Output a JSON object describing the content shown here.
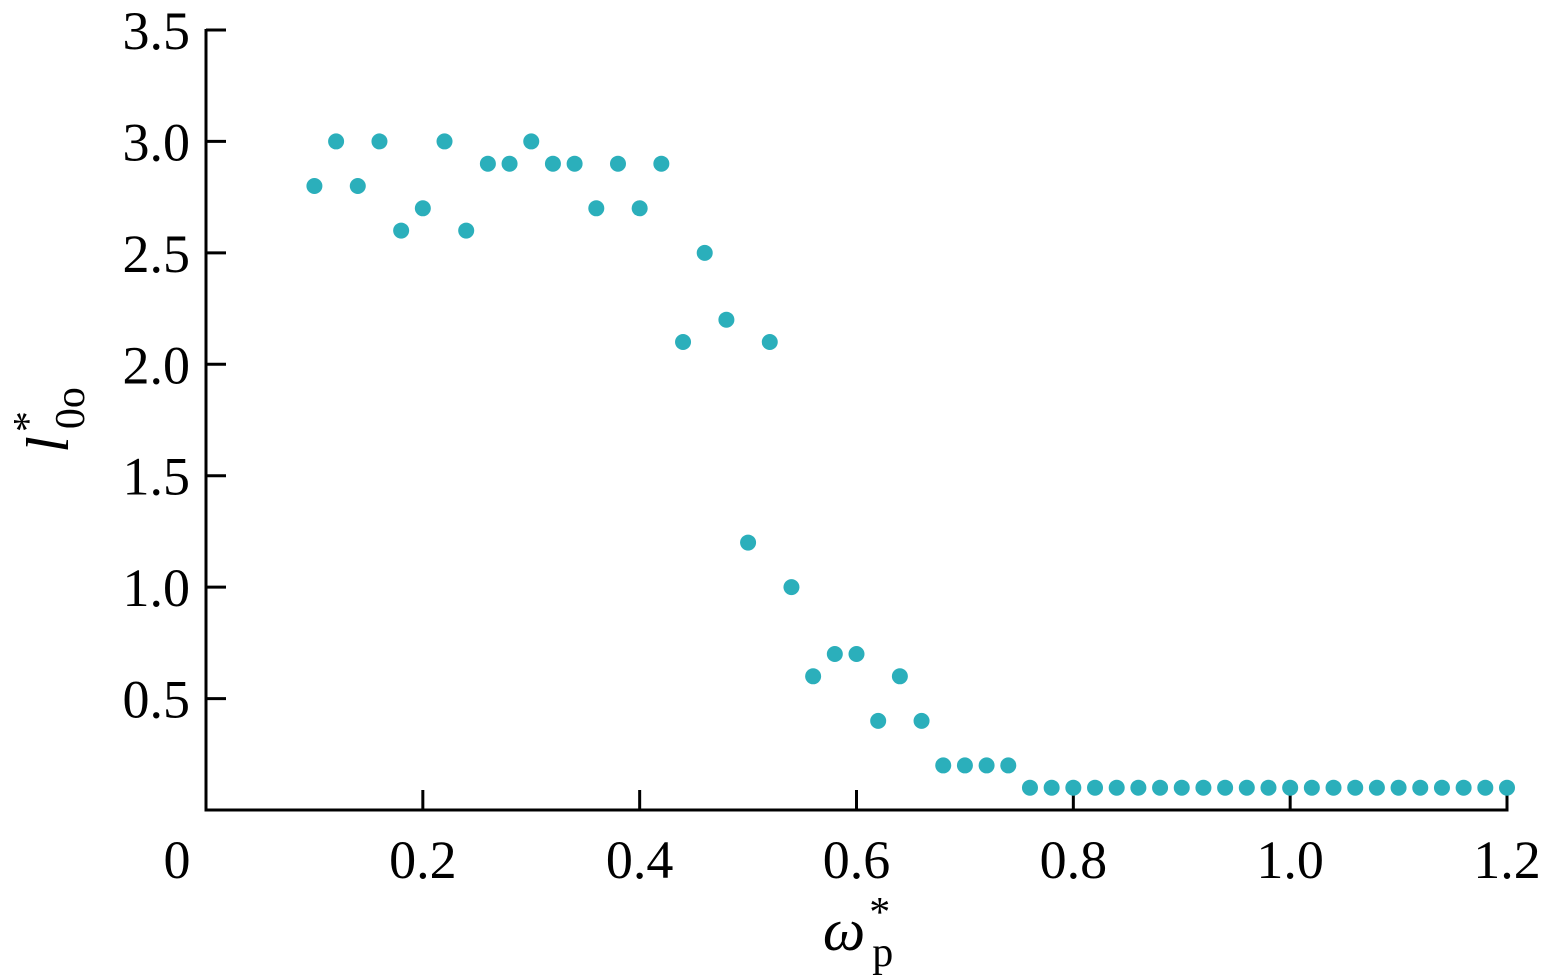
{
  "chart_data": {
    "type": "scatter",
    "xlabel": {
      "symbol": "ω",
      "superscript": "*",
      "subscript": "p"
    },
    "ylabel": {
      "symbol": "l",
      "superscript": "*",
      "subscript": "0o"
    },
    "xlim": [
      0,
      1.2
    ],
    "ylim": [
      0,
      3.5
    ],
    "x_ticks": [
      0,
      0.2,
      0.4,
      0.6,
      0.8,
      1.0,
      1.2
    ],
    "x_tick_labels": [
      "0",
      "0.2",
      "0.4",
      "0.6",
      "0.8",
      "1.0",
      "1.2"
    ],
    "y_ticks": [
      0.5,
      1.0,
      1.5,
      2.0,
      2.5,
      3.0,
      3.5
    ],
    "y_tick_labels": [
      "0.5",
      "1.0",
      "1.5",
      "2.0",
      "2.5",
      "3.0",
      "3.5"
    ],
    "grid": false,
    "marker_color": "#2bafbb",
    "series": [
      {
        "points": [
          [
            0.1,
            2.8
          ],
          [
            0.12,
            3.0
          ],
          [
            0.14,
            2.8
          ],
          [
            0.16,
            3.0
          ],
          [
            0.18,
            2.6
          ],
          [
            0.2,
            2.7
          ],
          [
            0.22,
            3.0
          ],
          [
            0.24,
            2.6
          ],
          [
            0.26,
            2.9
          ],
          [
            0.28,
            2.9
          ],
          [
            0.3,
            3.0
          ],
          [
            0.32,
            2.9
          ],
          [
            0.34,
            2.9
          ],
          [
            0.36,
            2.7
          ],
          [
            0.38,
            2.9
          ],
          [
            0.4,
            2.7
          ],
          [
            0.42,
            2.9
          ],
          [
            0.44,
            2.1
          ],
          [
            0.46,
            2.5
          ],
          [
            0.48,
            2.2
          ],
          [
            0.5,
            1.2
          ],
          [
            0.52,
            2.1
          ],
          [
            0.54,
            1.0
          ],
          [
            0.56,
            0.6
          ],
          [
            0.58,
            0.7
          ],
          [
            0.6,
            0.7
          ],
          [
            0.62,
            0.4
          ],
          [
            0.64,
            0.6
          ],
          [
            0.66,
            0.4
          ],
          [
            0.68,
            0.2
          ],
          [
            0.7,
            0.2
          ],
          [
            0.72,
            0.2
          ],
          [
            0.74,
            0.2
          ],
          [
            0.76,
            0.1
          ],
          [
            0.78,
            0.1
          ],
          [
            0.8,
            0.1
          ],
          [
            0.82,
            0.1
          ],
          [
            0.84,
            0.1
          ],
          [
            0.86,
            0.1
          ],
          [
            0.88,
            0.1
          ],
          [
            0.9,
            0.1
          ],
          [
            0.92,
            0.1
          ],
          [
            0.94,
            0.1
          ],
          [
            0.96,
            0.1
          ],
          [
            0.98,
            0.1
          ],
          [
            1.0,
            0.1
          ],
          [
            1.02,
            0.1
          ],
          [
            1.04,
            0.1
          ],
          [
            1.06,
            0.1
          ],
          [
            1.08,
            0.1
          ],
          [
            1.1,
            0.1
          ],
          [
            1.12,
            0.1
          ],
          [
            1.14,
            0.1
          ],
          [
            1.16,
            0.1
          ],
          [
            1.18,
            0.1
          ],
          [
            1.2,
            0.1
          ]
        ]
      }
    ]
  }
}
